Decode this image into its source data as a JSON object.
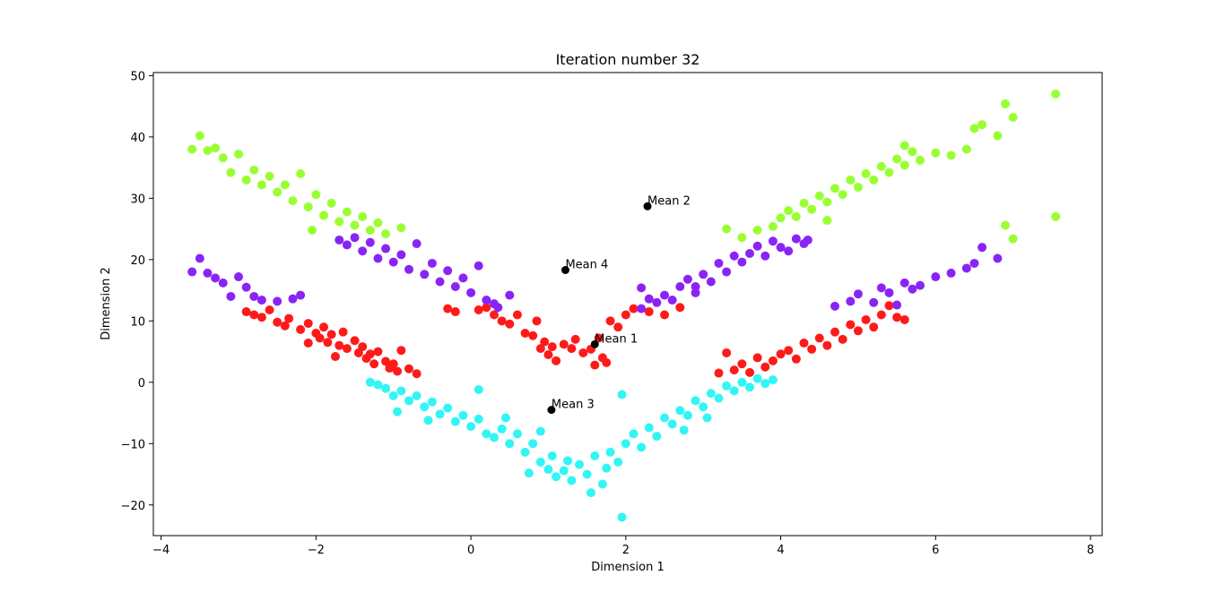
{
  "chart_data": {
    "type": "scatter",
    "title": "Iteration number 32",
    "xlabel": "Dimension 1",
    "ylabel": "Dimension 2",
    "xlim": [
      -4.1,
      8.15
    ],
    "ylim": [
      -25,
      50.5
    ],
    "xticks": [
      -4,
      -2,
      0,
      2,
      4,
      6,
      8
    ],
    "yticks": [
      -20,
      -10,
      0,
      10,
      20,
      30,
      40,
      50
    ],
    "xtick_labels": [
      "−4",
      "−2",
      "0",
      "2",
      "4",
      "6",
      "8"
    ],
    "ytick_labels": [
      "−20",
      "−10",
      "0",
      "10",
      "20",
      "30",
      "40",
      "50"
    ],
    "grid": false,
    "legend": "none",
    "series": [
      {
        "color": "#ff1a1a",
        "points": [
          [
            -2.9,
            11.5
          ],
          [
            -2.8,
            11.0
          ],
          [
            -2.7,
            10.6
          ],
          [
            -2.6,
            11.8
          ],
          [
            -2.5,
            9.8
          ],
          [
            -2.4,
            9.2
          ],
          [
            -2.35,
            10.4
          ],
          [
            -2.2,
            8.6
          ],
          [
            -2.1,
            9.6
          ],
          [
            -2.0,
            8.0
          ],
          [
            -1.95,
            7.2
          ],
          [
            -1.9,
            9.0
          ],
          [
            -1.85,
            6.5
          ],
          [
            -1.8,
            7.8
          ],
          [
            -1.7,
            6.0
          ],
          [
            -1.65,
            8.2
          ],
          [
            -1.6,
            5.5
          ],
          [
            -1.5,
            6.8
          ],
          [
            -1.45,
            4.8
          ],
          [
            -1.4,
            5.8
          ],
          [
            -1.35,
            3.9
          ],
          [
            -1.3,
            4.6
          ],
          [
            -1.25,
            3.0
          ],
          [
            -1.2,
            5.0
          ],
          [
            -1.1,
            3.4
          ],
          [
            -1.05,
            2.3
          ],
          [
            -1.0,
            3.0
          ],
          [
            -0.95,
            1.8
          ],
          [
            -0.9,
            5.2
          ],
          [
            -0.8,
            2.2
          ],
          [
            -0.7,
            1.4
          ],
          [
            -0.3,
            12.0
          ],
          [
            -0.2,
            11.5
          ],
          [
            0.1,
            11.8
          ],
          [
            0.2,
            12.2
          ],
          [
            0.3,
            11.0
          ],
          [
            0.4,
            10.0
          ],
          [
            0.5,
            9.5
          ],
          [
            0.6,
            11.0
          ],
          [
            0.7,
            8.0
          ],
          [
            0.8,
            7.6
          ],
          [
            0.85,
            10.0
          ],
          [
            0.9,
            5.5
          ],
          [
            0.95,
            6.6
          ],
          [
            1.0,
            4.5
          ],
          [
            1.05,
            5.8
          ],
          [
            1.1,
            3.5
          ],
          [
            1.2,
            6.2
          ],
          [
            1.3,
            5.5
          ],
          [
            1.35,
            7.0
          ],
          [
            1.45,
            4.8
          ],
          [
            1.55,
            5.4
          ],
          [
            1.6,
            2.8
          ],
          [
            1.65,
            7.2
          ],
          [
            1.7,
            4.0
          ],
          [
            1.75,
            3.2
          ],
          [
            1.8,
            10.0
          ],
          [
            1.9,
            9.0
          ],
          [
            2.0,
            11.0
          ],
          [
            2.1,
            12.0
          ],
          [
            2.3,
            11.5
          ],
          [
            2.5,
            11.0
          ],
          [
            2.7,
            12.2
          ],
          [
            3.3,
            4.8
          ],
          [
            3.5,
            3.0
          ],
          [
            3.7,
            4.0
          ],
          [
            3.8,
            2.5
          ],
          [
            3.9,
            3.5
          ],
          [
            4.0,
            4.6
          ],
          [
            4.1,
            5.2
          ],
          [
            4.2,
            3.8
          ],
          [
            4.3,
            6.4
          ],
          [
            4.4,
            5.4
          ],
          [
            4.5,
            7.2
          ],
          [
            4.6,
            6.0
          ],
          [
            4.7,
            8.2
          ],
          [
            4.8,
            7.0
          ],
          [
            4.9,
            9.4
          ],
          [
            5.0,
            8.4
          ],
          [
            5.1,
            10.2
          ],
          [
            5.2,
            9.0
          ],
          [
            5.3,
            11.0
          ],
          [
            5.4,
            12.5
          ],
          [
            5.5,
            10.6
          ],
          [
            5.6,
            10.2
          ],
          [
            3.2,
            1.5
          ],
          [
            3.4,
            2.0
          ],
          [
            3.6,
            1.6
          ],
          [
            -2.1,
            6.4
          ],
          [
            -1.75,
            4.2
          ]
        ]
      },
      {
        "color": "#33f5f5",
        "points": [
          [
            -1.3,
            0.0
          ],
          [
            -1.2,
            -0.4
          ],
          [
            -1.1,
            -1.0
          ],
          [
            -1.0,
            -2.2
          ],
          [
            -0.9,
            -1.4
          ],
          [
            -0.8,
            -3.0
          ],
          [
            -0.7,
            -2.2
          ],
          [
            -0.6,
            -4.0
          ],
          [
            -0.5,
            -3.2
          ],
          [
            -0.4,
            -5.2
          ],
          [
            -0.3,
            -4.2
          ],
          [
            -0.2,
            -6.4
          ],
          [
            -0.1,
            -5.4
          ],
          [
            0.0,
            -7.2
          ],
          [
            0.1,
            -6.0
          ],
          [
            0.2,
            -8.4
          ],
          [
            0.3,
            -9.0
          ],
          [
            0.4,
            -7.6
          ],
          [
            0.5,
            -10.0
          ],
          [
            0.6,
            -8.4
          ],
          [
            0.7,
            -11.4
          ],
          [
            0.8,
            -10.0
          ],
          [
            0.9,
            -13.0
          ],
          [
            1.0,
            -14.2
          ],
          [
            1.05,
            -12.0
          ],
          [
            1.1,
            -15.4
          ],
          [
            1.2,
            -14.4
          ],
          [
            1.3,
            -16.0
          ],
          [
            1.4,
            -13.4
          ],
          [
            1.5,
            -15.0
          ],
          [
            1.55,
            -18.0
          ],
          [
            1.6,
            -12.0
          ],
          [
            1.7,
            -16.6
          ],
          [
            1.75,
            -14.0
          ],
          [
            1.8,
            -11.4
          ],
          [
            1.9,
            -13.0
          ],
          [
            1.95,
            -2.0
          ],
          [
            1.95,
            -22.0
          ],
          [
            2.0,
            -10.0
          ],
          [
            2.1,
            -8.4
          ],
          [
            2.2,
            -10.6
          ],
          [
            2.3,
            -7.4
          ],
          [
            2.4,
            -8.8
          ],
          [
            2.5,
            -5.8
          ],
          [
            2.6,
            -6.8
          ],
          [
            2.7,
            -4.6
          ],
          [
            2.8,
            -5.4
          ],
          [
            2.9,
            -3.0
          ],
          [
            3.0,
            -4.0
          ],
          [
            3.1,
            -1.8
          ],
          [
            3.2,
            -2.6
          ],
          [
            3.3,
            -0.6
          ],
          [
            3.4,
            -1.4
          ],
          [
            3.5,
            0.0
          ],
          [
            3.6,
            -0.8
          ],
          [
            3.7,
            0.6
          ],
          [
            3.8,
            -0.2
          ],
          [
            3.9,
            0.4
          ],
          [
            0.1,
            -1.2
          ],
          [
            0.9,
            -8.0
          ],
          [
            -0.95,
            -4.8
          ],
          [
            -0.55,
            -6.2
          ],
          [
            0.45,
            -5.8
          ],
          [
            2.75,
            -7.8
          ],
          [
            3.05,
            -5.8
          ],
          [
            1.25,
            -12.8
          ],
          [
            0.75,
            -14.8
          ]
        ]
      },
      {
        "color": "#8a24f5",
        "points": [
          [
            -3.6,
            18.0
          ],
          [
            -3.5,
            20.2
          ],
          [
            -3.4,
            17.8
          ],
          [
            -3.3,
            17.0
          ],
          [
            -3.2,
            16.2
          ],
          [
            -3.1,
            14.0
          ],
          [
            -3.0,
            17.2
          ],
          [
            -2.9,
            15.5
          ],
          [
            -2.8,
            14.0
          ],
          [
            -2.7,
            13.4
          ],
          [
            -2.5,
            13.2
          ],
          [
            -2.3,
            13.6
          ],
          [
            -2.2,
            14.2
          ],
          [
            -1.7,
            23.2
          ],
          [
            -1.6,
            22.4
          ],
          [
            -1.5,
            23.6
          ],
          [
            -1.4,
            21.4
          ],
          [
            -1.3,
            22.8
          ],
          [
            -1.2,
            20.2
          ],
          [
            -1.1,
            21.8
          ],
          [
            -1.0,
            19.6
          ],
          [
            -0.9,
            20.8
          ],
          [
            -0.8,
            18.4
          ],
          [
            -0.7,
            22.6
          ],
          [
            -0.6,
            17.6
          ],
          [
            -0.5,
            19.4
          ],
          [
            -0.4,
            16.4
          ],
          [
            -0.3,
            18.2
          ],
          [
            -0.2,
            15.6
          ],
          [
            -0.1,
            17.0
          ],
          [
            0.0,
            14.6
          ],
          [
            0.1,
            19.0
          ],
          [
            0.2,
            13.4
          ],
          [
            0.3,
            12.8
          ],
          [
            0.5,
            14.2
          ],
          [
            2.2,
            15.4
          ],
          [
            2.2,
            12.0
          ],
          [
            2.3,
            13.6
          ],
          [
            2.4,
            13.0
          ],
          [
            2.5,
            14.2
          ],
          [
            2.6,
            13.4
          ],
          [
            2.7,
            15.6
          ],
          [
            2.8,
            16.8
          ],
          [
            2.9,
            15.6
          ],
          [
            3.0,
            17.6
          ],
          [
            3.1,
            16.4
          ],
          [
            3.2,
            19.4
          ],
          [
            3.3,
            18.0
          ],
          [
            3.4,
            20.6
          ],
          [
            3.5,
            19.6
          ],
          [
            3.6,
            21.0
          ],
          [
            3.7,
            22.2
          ],
          [
            3.8,
            20.6
          ],
          [
            3.9,
            23.0
          ],
          [
            4.0,
            22.0
          ],
          [
            4.1,
            21.4
          ],
          [
            4.2,
            23.4
          ],
          [
            4.3,
            22.6
          ],
          [
            4.35,
            23.2
          ],
          [
            4.7,
            12.4
          ],
          [
            4.9,
            13.2
          ],
          [
            5.0,
            14.4
          ],
          [
            5.2,
            13.0
          ],
          [
            5.3,
            15.4
          ],
          [
            5.4,
            14.6
          ],
          [
            5.5,
            12.6
          ],
          [
            5.6,
            16.2
          ],
          [
            5.7,
            15.2
          ],
          [
            5.8,
            15.8
          ],
          [
            6.0,
            17.2
          ],
          [
            6.2,
            17.8
          ],
          [
            6.4,
            18.6
          ],
          [
            6.6,
            22.0
          ],
          [
            6.8,
            20.2
          ],
          [
            6.5,
            19.4
          ],
          [
            2.9,
            14.6
          ],
          [
            0.35,
            12.2
          ]
        ]
      },
      {
        "color": "#99ff33",
        "points": [
          [
            -3.6,
            38.0
          ],
          [
            -3.5,
            40.2
          ],
          [
            -3.4,
            37.8
          ],
          [
            -3.3,
            38.2
          ],
          [
            -3.2,
            36.6
          ],
          [
            -3.1,
            34.2
          ],
          [
            -3.0,
            37.2
          ],
          [
            -2.9,
            33.0
          ],
          [
            -2.8,
            34.6
          ],
          [
            -2.7,
            32.2
          ],
          [
            -2.6,
            33.6
          ],
          [
            -2.5,
            31.0
          ],
          [
            -2.4,
            32.2
          ],
          [
            -2.3,
            29.6
          ],
          [
            -2.2,
            34.0
          ],
          [
            -2.1,
            28.6
          ],
          [
            -2.0,
            30.6
          ],
          [
            -1.9,
            27.2
          ],
          [
            -1.8,
            29.2
          ],
          [
            -1.7,
            26.2
          ],
          [
            -1.6,
            27.8
          ],
          [
            -1.5,
            25.6
          ],
          [
            -1.4,
            27.0
          ],
          [
            -1.3,
            24.8
          ],
          [
            -1.2,
            26.0
          ],
          [
            -1.1,
            24.2
          ],
          [
            -0.9,
            25.2
          ],
          [
            -2.05,
            24.8
          ],
          [
            3.3,
            25.0
          ],
          [
            3.5,
            23.6
          ],
          [
            3.7,
            24.8
          ],
          [
            3.9,
            25.4
          ],
          [
            4.0,
            26.8
          ],
          [
            4.1,
            28.0
          ],
          [
            4.2,
            27.0
          ],
          [
            4.3,
            29.2
          ],
          [
            4.4,
            28.2
          ],
          [
            4.5,
            30.4
          ],
          [
            4.6,
            29.4
          ],
          [
            4.7,
            31.6
          ],
          [
            4.8,
            30.6
          ],
          [
            4.9,
            33.0
          ],
          [
            5.0,
            31.8
          ],
          [
            5.1,
            34.0
          ],
          [
            5.2,
            33.0
          ],
          [
            5.3,
            35.2
          ],
          [
            5.4,
            34.2
          ],
          [
            5.5,
            36.4
          ],
          [
            5.6,
            35.4
          ],
          [
            5.7,
            37.6
          ],
          [
            5.8,
            36.2
          ],
          [
            6.0,
            37.4
          ],
          [
            6.2,
            37.0
          ],
          [
            6.4,
            38.0
          ],
          [
            6.5,
            41.4
          ],
          [
            6.6,
            42.0
          ],
          [
            6.8,
            40.2
          ],
          [
            6.9,
            45.4
          ],
          [
            7.0,
            43.2
          ],
          [
            7.55,
            47.0
          ],
          [
            7.55,
            27.0
          ],
          [
            6.9,
            25.6
          ],
          [
            7.0,
            23.4
          ],
          [
            5.6,
            38.6
          ],
          [
            4.6,
            26.4
          ]
        ]
      }
    ],
    "means": [
      {
        "label": "Mean 1",
        "x": 1.6,
        "y": 6.2
      },
      {
        "label": "Mean 2",
        "x": 2.28,
        "y": 28.7
      },
      {
        "label": "Mean 3",
        "x": 1.04,
        "y": -4.5
      },
      {
        "label": "Mean 4",
        "x": 1.22,
        "y": 18.3
      }
    ]
  }
}
